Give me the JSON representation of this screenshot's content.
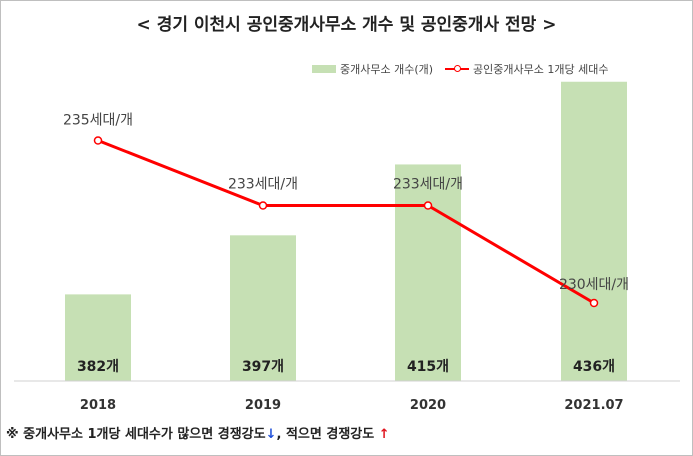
{
  "title": "< 경기 이천시 공인중개사무소 개수 및 공인중개사 전망 >",
  "legend": {
    "bar_label": "중개사무소 개수(개)",
    "line_label": "공인중개사무소 1개당 세대수"
  },
  "footnote": {
    "text_part1": "※ 중개사무소 1개당 세대수가 많으면 경쟁강도",
    "arrow_down": "↓",
    "text_part2": ", 적으면 경쟁강도 ",
    "arrow_up": "↑"
  },
  "colors": {
    "bar": "#c6e0b4",
    "line": "#ff0000"
  },
  "chart_data": {
    "type": "bar+line",
    "title": "< 경기 이천시 공인중개사무소 개수 및 공인중개사 전망 >",
    "categories": [
      "2018",
      "2019",
      "2020",
      "2021.07"
    ],
    "series": [
      {
        "name": "중개사무소 개수(개)",
        "type": "bar",
        "values": [
          382,
          397,
          415,
          436
        ],
        "labels": [
          "382개",
          "397개",
          "415개",
          "436개"
        ]
      },
      {
        "name": "공인중개사무소 1개당 세대수",
        "type": "line",
        "values": [
          235,
          233,
          233,
          230
        ],
        "labels": [
          "235세대/개",
          "233세대/개",
          "233세대/개",
          "230세대/개"
        ]
      }
    ],
    "bar_axis_range": [
      360,
      440
    ],
    "line_axis_range": [
      226,
      236
    ],
    "grid": false,
    "legend_position": "top-right"
  }
}
